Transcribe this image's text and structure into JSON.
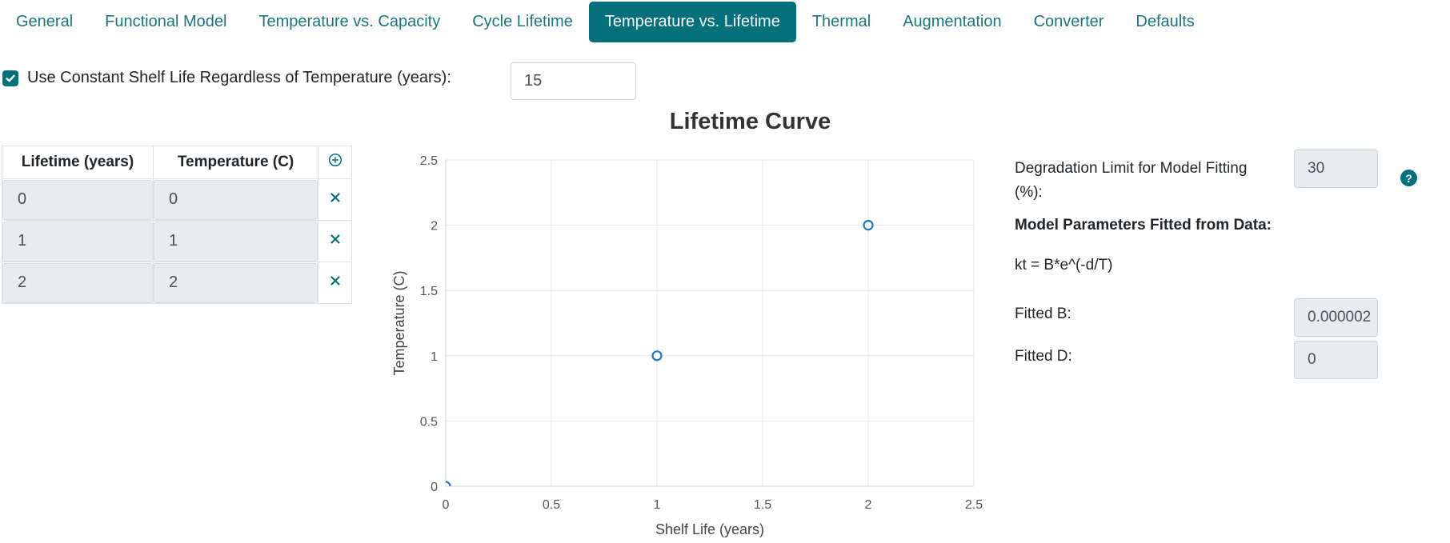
{
  "tabs": [
    {
      "label": "General"
    },
    {
      "label": "Functional Model"
    },
    {
      "label": "Temperature vs. Capacity"
    },
    {
      "label": "Cycle Lifetime"
    },
    {
      "label": "Temperature vs. Lifetime",
      "active": true
    },
    {
      "label": "Thermal"
    },
    {
      "label": "Augmentation"
    },
    {
      "label": "Converter"
    },
    {
      "label": "Defaults"
    }
  ],
  "shelf_life": {
    "checkbox_checked": true,
    "label": "Use Constant Shelf Life Regardless of Temperature (years):",
    "value": "15"
  },
  "table": {
    "headers": [
      "Lifetime (years)",
      "Temperature (C)"
    ],
    "add_icon": "plus-circle-icon",
    "remove_icon": "x-icon",
    "rows": [
      {
        "lifetime": "0",
        "temperature": "0"
      },
      {
        "lifetime": "1",
        "temperature": "1"
      },
      {
        "lifetime": "2",
        "temperature": "2"
      }
    ]
  },
  "chart_data": {
    "type": "scatter",
    "title": "Lifetime Curve",
    "xlabel": "Shelf Life (years)",
    "ylabel": "Temperature (C)",
    "x": [
      0,
      1,
      2
    ],
    "y": [
      0,
      1,
      2
    ],
    "xlim": [
      0,
      2.5
    ],
    "ylim": [
      0,
      2.5
    ],
    "xticks": [
      "0",
      "0.5",
      "1",
      "1.5",
      "2",
      "2.5"
    ],
    "yticks": [
      "0",
      "0.5",
      "1",
      "1.5",
      "2",
      "2.5"
    ],
    "grid": true,
    "marker": "hollow-circle",
    "color": "#1f77d0"
  },
  "fitting": {
    "degradation_label": "Degradation Limit for Model Fitting (%):",
    "degradation_value": "30",
    "params_heading": "Model Parameters Fitted from Data:",
    "formula": "kt = B*e^(-d/T)",
    "fitted_b_label": "Fitted B:",
    "fitted_b_value": "0.000002",
    "fitted_d_label": "Fitted D:",
    "fitted_d_value": "0",
    "help_icon": "question-circle-icon"
  },
  "colors": {
    "accent": "#04707b",
    "tab_text": "#17777f"
  }
}
